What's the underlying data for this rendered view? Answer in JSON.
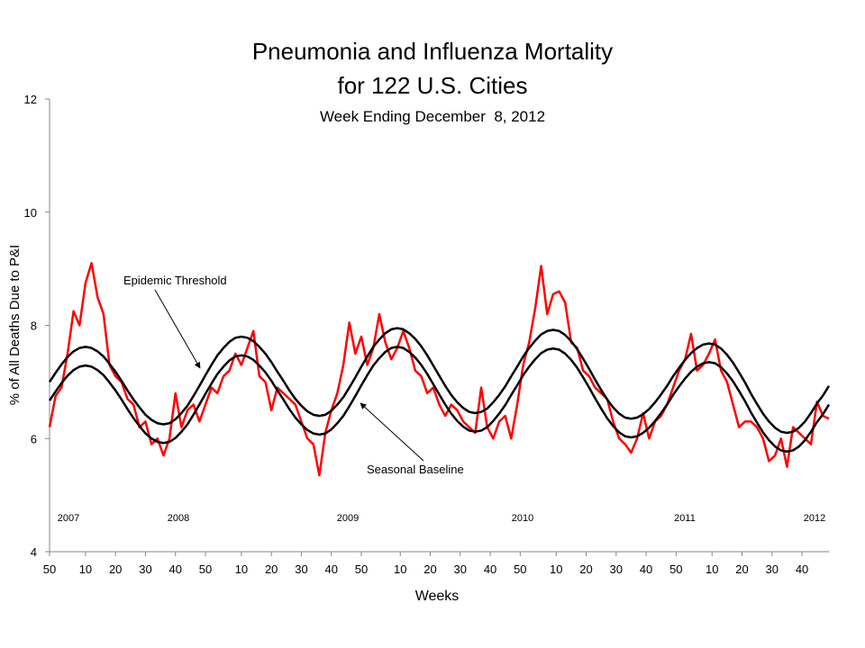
{
  "chart_data": {
    "type": "line",
    "title": "Pneumonia and Influenza Mortality",
    "title_line2": "for 122 U.S. Cities",
    "subtitle": "Week Ending December  8, 2012",
    "xlabel": "Weeks",
    "ylabel": "% of All Deaths Due to P&I",
    "annotations": [
      "Epidemic Threshold",
      "Seasonal Baseline"
    ],
    "year_labels": [
      "2007",
      "2008",
      "2009",
      "2010",
      "2011",
      "2012"
    ],
    "xlim": [
      0,
      260
    ],
    "xticks": [
      {
        "value": 0,
        "label": "50"
      },
      {
        "value": 12,
        "label": "10"
      },
      {
        "value": 22,
        "label": "20"
      },
      {
        "value": 32,
        "label": "30"
      },
      {
        "value": 42,
        "label": "40"
      },
      {
        "value": 52,
        "label": "50"
      },
      {
        "value": 64,
        "label": "10"
      },
      {
        "value": 74,
        "label": "20"
      },
      {
        "value": 84,
        "label": "30"
      },
      {
        "value": 94,
        "label": "40"
      },
      {
        "value": 104,
        "label": "50"
      },
      {
        "value": 117,
        "label": "10"
      },
      {
        "value": 127,
        "label": "20"
      },
      {
        "value": 137,
        "label": "30"
      },
      {
        "value": 147,
        "label": "40"
      },
      {
        "value": 157,
        "label": "50"
      },
      {
        "value": 169,
        "label": "10"
      },
      {
        "value": 179,
        "label": "20"
      },
      {
        "value": 189,
        "label": "30"
      },
      {
        "value": 199,
        "label": "40"
      },
      {
        "value": 209,
        "label": "50"
      },
      {
        "value": 221,
        "label": "10"
      },
      {
        "value": 231,
        "label": "20"
      },
      {
        "value": 241,
        "label": "30"
      },
      {
        "value": 251,
        "label": "40"
      }
    ],
    "ylim": [
      4,
      12
    ],
    "yticks": [
      4,
      6,
      8,
      10,
      12
    ],
    "x": [
      0,
      2,
      4,
      6,
      8,
      10,
      12,
      14,
      16,
      18,
      20,
      22,
      24,
      26,
      28,
      30,
      32,
      34,
      36,
      38,
      40,
      42,
      44,
      46,
      48,
      50,
      52,
      54,
      56,
      58,
      60,
      62,
      64,
      66,
      68,
      70,
      72,
      74,
      76,
      78,
      80,
      82,
      84,
      86,
      88,
      90,
      92,
      94,
      96,
      98,
      100,
      102,
      104,
      106,
      108,
      110,
      112,
      114,
      116,
      118,
      120,
      122,
      124,
      126,
      128,
      130,
      132,
      134,
      136,
      138,
      140,
      142,
      144,
      146,
      148,
      150,
      152,
      154,
      156,
      158,
      160,
      162,
      164,
      166,
      168,
      170,
      172,
      174,
      176,
      178,
      180,
      182,
      184,
      186,
      188,
      190,
      192,
      194,
      196,
      198,
      200,
      202,
      204,
      206,
      208,
      210,
      212,
      214,
      216,
      218,
      220,
      222,
      224,
      226,
      228,
      230,
      232,
      234,
      236,
      238,
      240,
      242,
      244,
      246,
      248,
      250,
      252,
      254,
      256,
      258,
      260
    ],
    "series": [
      {
        "color": "#ff0000",
        "width": 2.5,
        "values": [
          6.2,
          6.75,
          6.9,
          7.5,
          8.25,
          8.0,
          8.75,
          9.1,
          8.5,
          8.2,
          7.3,
          7.1,
          7.0,
          6.7,
          6.6,
          6.2,
          6.3,
          5.9,
          6.0,
          5.7,
          6.0,
          6.8,
          6.2,
          6.5,
          6.6,
          6.3,
          6.6,
          6.9,
          6.8,
          7.1,
          7.2,
          7.5,
          7.3,
          7.6,
          7.9,
          7.1,
          7.0,
          6.5,
          6.9,
          6.8,
          6.7,
          6.6,
          6.3,
          6.0,
          5.9,
          5.35,
          6.1,
          6.5,
          6.8,
          7.3,
          8.05,
          7.5,
          7.8,
          7.3,
          7.6,
          8.2,
          7.7,
          7.4,
          7.6,
          7.9,
          7.6,
          7.2,
          7.1,
          6.8,
          6.9,
          6.6,
          6.4,
          6.6,
          6.5,
          6.3,
          6.2,
          6.1,
          6.9,
          6.2,
          6.0,
          6.3,
          6.4,
          6.0,
          6.6,
          7.3,
          7.7,
          8.3,
          9.05,
          8.2,
          8.55,
          8.6,
          8.4,
          7.7,
          7.6,
          7.2,
          7.1,
          6.9,
          6.8,
          6.7,
          6.3,
          6.0,
          5.9,
          5.75,
          6.0,
          6.45,
          6.0,
          6.3,
          6.4,
          6.6,
          6.9,
          7.2,
          7.4,
          7.85,
          7.2,
          7.3,
          7.5,
          7.75,
          7.2,
          7.0,
          6.6,
          6.2,
          6.3,
          6.3,
          6.2,
          6.0,
          5.6,
          5.7,
          6.0,
          5.5,
          6.2,
          6.1,
          6.0,
          5.9,
          6.65,
          6.4,
          6.35
        ]
      },
      {
        "color": "#000000",
        "width": 2.5,
        "values": [
          7.0,
          7.16,
          7.31,
          7.44,
          7.54,
          7.6,
          7.62,
          7.6,
          7.54,
          7.45,
          7.32,
          7.18,
          7.02,
          6.85,
          6.69,
          6.55,
          6.42,
          6.33,
          6.27,
          6.25,
          6.27,
          6.34,
          6.45,
          6.58,
          6.75,
          6.93,
          7.12,
          7.3,
          7.47,
          7.6,
          7.71,
          7.78,
          7.8,
          7.78,
          7.72,
          7.62,
          7.5,
          7.35,
          7.18,
          7.02,
          6.85,
          6.7,
          6.58,
          6.48,
          6.42,
          6.4,
          6.42,
          6.49,
          6.6,
          6.73,
          6.9,
          7.08,
          7.27,
          7.45,
          7.62,
          7.75,
          7.86,
          7.93,
          7.95,
          7.93,
          7.86,
          7.76,
          7.63,
          7.47,
          7.29,
          7.11,
          6.93,
          6.77,
          6.64,
          6.54,
          6.47,
          6.45,
          6.47,
          6.53,
          6.64,
          6.77,
          6.92,
          7.1,
          7.27,
          7.45,
          7.6,
          7.73,
          7.84,
          7.9,
          7.92,
          7.9,
          7.83,
          7.72,
          7.58,
          7.41,
          7.23,
          7.04,
          6.86,
          6.69,
          6.55,
          6.44,
          6.37,
          6.35,
          6.37,
          6.43,
          6.52,
          6.64,
          6.78,
          6.93,
          7.1,
          7.25,
          7.39,
          7.51,
          7.6,
          7.66,
          7.68,
          7.66,
          7.59,
          7.48,
          7.34,
          7.17,
          6.99,
          6.79,
          6.61,
          6.44,
          6.3,
          6.19,
          6.12,
          6.1,
          6.12,
          6.19,
          6.3,
          6.45,
          6.62,
          6.76,
          6.93
        ]
      },
      {
        "color": "#000000",
        "width": 2.5,
        "values": [
          6.67,
          6.83,
          6.98,
          7.11,
          7.21,
          7.27,
          7.29,
          7.27,
          7.21,
          7.12,
          6.99,
          6.85,
          6.69,
          6.52,
          6.36,
          6.22,
          6.09,
          6.0,
          5.94,
          5.92,
          5.94,
          6.01,
          6.12,
          6.25,
          6.42,
          6.6,
          6.79,
          6.97,
          7.14,
          7.27,
          7.38,
          7.45,
          7.47,
          7.45,
          7.39,
          7.29,
          7.17,
          7.02,
          6.85,
          6.69,
          6.52,
          6.37,
          6.25,
          6.15,
          6.09,
          6.07,
          6.09,
          6.16,
          6.27,
          6.4,
          6.57,
          6.75,
          6.94,
          7.12,
          7.29,
          7.42,
          7.53,
          7.6,
          7.62,
          7.6,
          7.53,
          7.43,
          7.3,
          7.14,
          6.96,
          6.78,
          6.6,
          6.44,
          6.31,
          6.21,
          6.14,
          6.12,
          6.14,
          6.2,
          6.31,
          6.44,
          6.59,
          6.77,
          6.94,
          7.12,
          7.27,
          7.4,
          7.51,
          7.57,
          7.59,
          7.57,
          7.5,
          7.39,
          7.25,
          7.08,
          6.9,
          6.71,
          6.53,
          6.36,
          6.22,
          6.11,
          6.04,
          6.02,
          6.04,
          6.1,
          6.19,
          6.31,
          6.45,
          6.6,
          6.77,
          6.92,
          7.06,
          7.18,
          7.27,
          7.33,
          7.35,
          7.33,
          7.26,
          7.15,
          7.01,
          6.84,
          6.66,
          6.46,
          6.28,
          6.11,
          5.97,
          5.86,
          5.79,
          5.77,
          5.79,
          5.86,
          5.97,
          6.12,
          6.29,
          6.43,
          6.6
        ]
      }
    ]
  }
}
